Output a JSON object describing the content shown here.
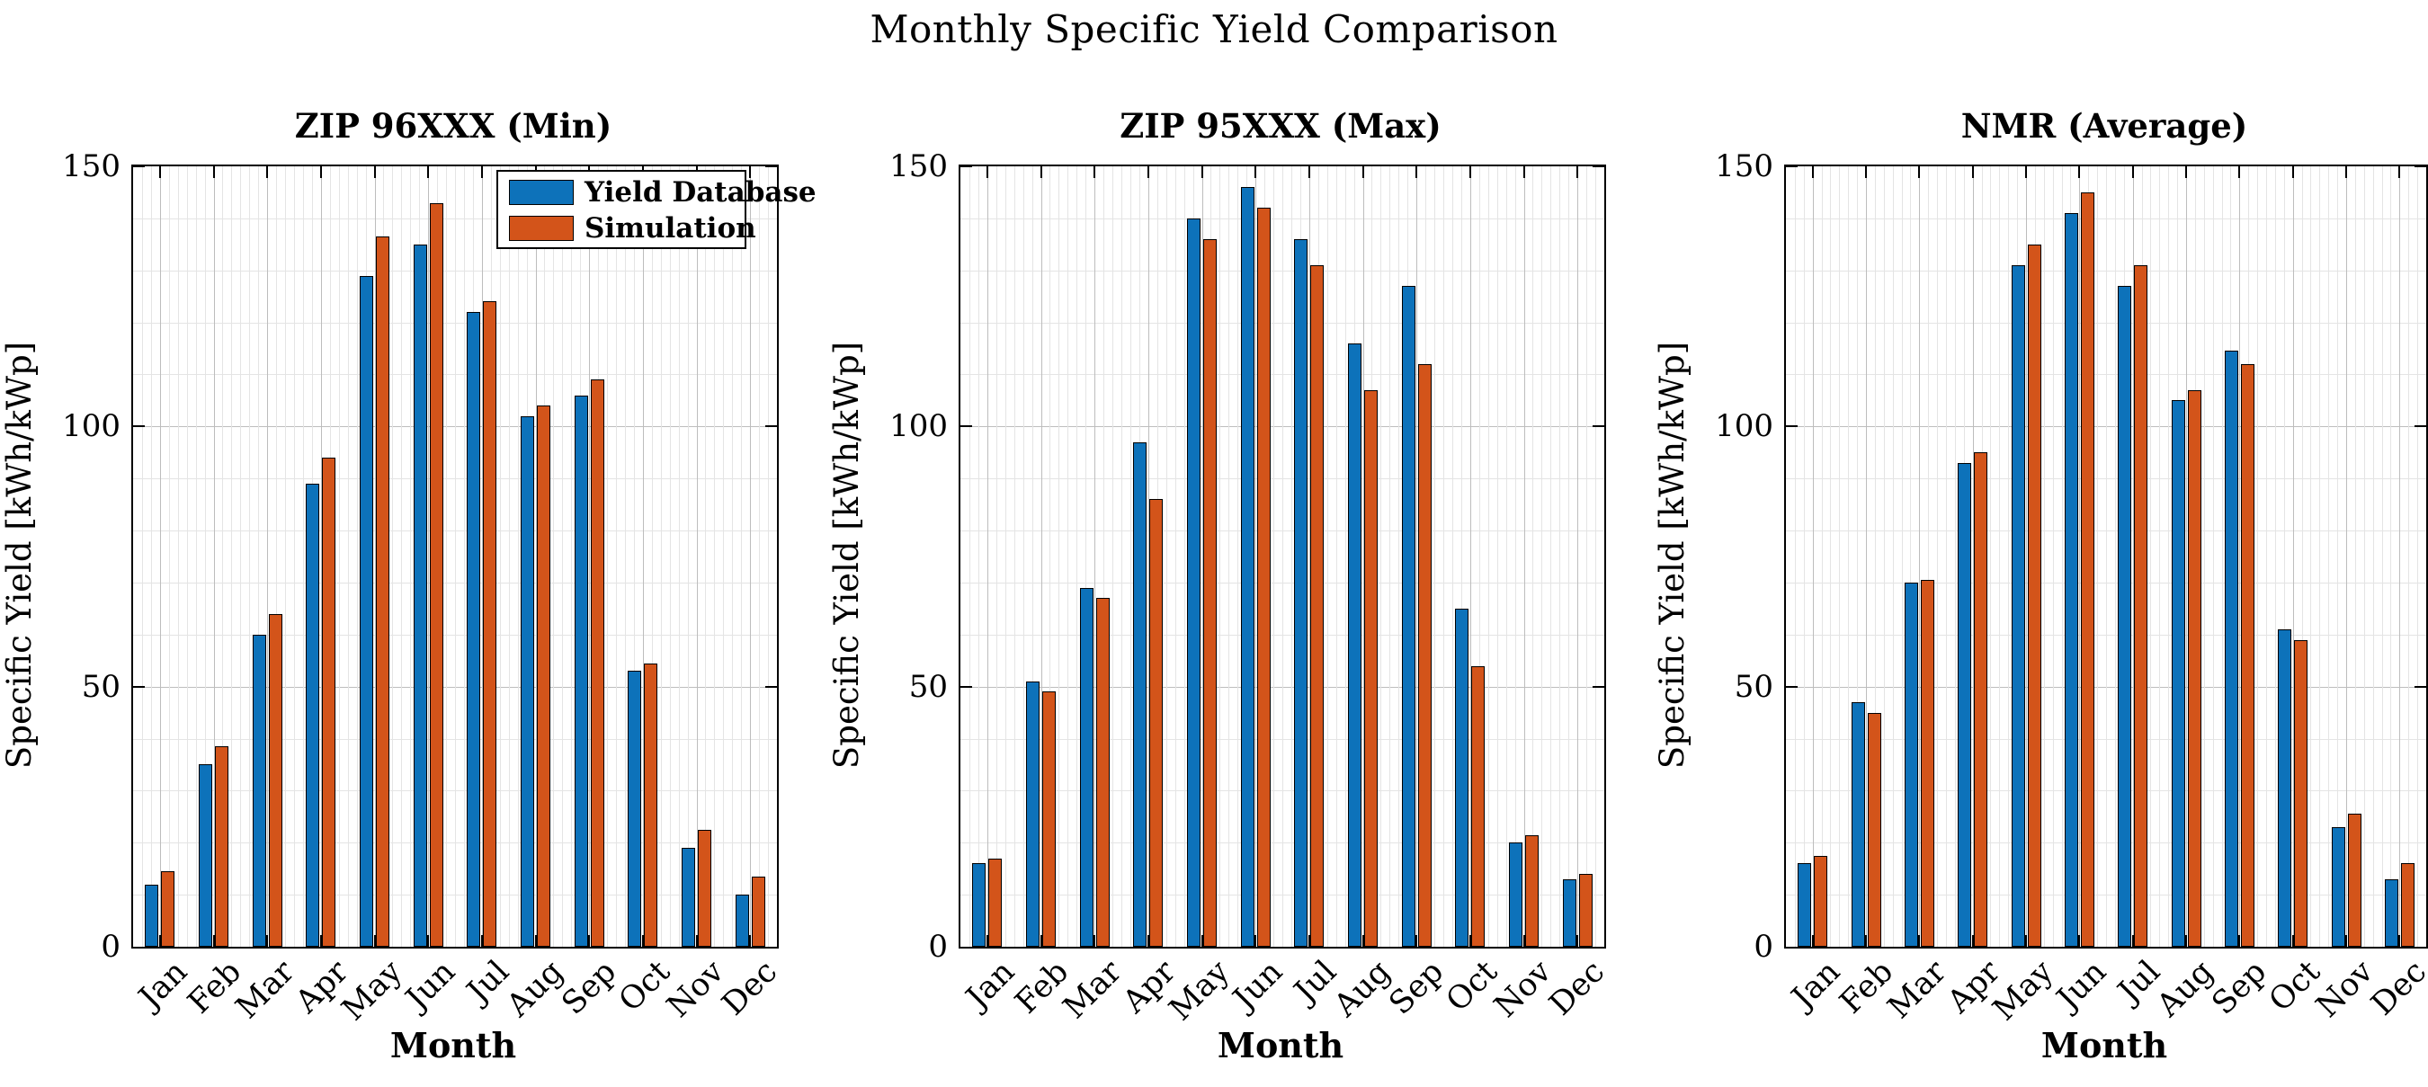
{
  "suptitle": "Monthly Specific Yield Comparison",
  "colors": {
    "series1": "#0d72ba",
    "series2": "#d3541a",
    "grid_major": "#bdbdbd",
    "grid_minor": "#e4e4e4",
    "axis": "#000000"
  },
  "legend": {
    "items": [
      {
        "label": "Yield Database",
        "color": "#0d72ba"
      },
      {
        "label": "Simulation",
        "color": "#d3541a"
      }
    ]
  },
  "chart_data": [
    {
      "type": "bar",
      "title": "ZIP 96XXX (Min)",
      "xlabel": "Month",
      "ylabel": "Specific Yield [kWh/kWp]",
      "ylim": [
        0,
        150
      ],
      "yticks": [
        0,
        50,
        100,
        150
      ],
      "grid": "major and minor, x and y",
      "legend_position": "top-right inside axes",
      "categories": [
        "Jan",
        "Feb",
        "Mar",
        "Apr",
        "May",
        "Jun",
        "Jul",
        "Aug",
        "Sep",
        "Oct",
        "Nov",
        "Dec"
      ],
      "series": [
        {
          "name": "Yield Database",
          "color": "#0d72ba",
          "values": [
            12,
            35,
            60,
            89,
            129,
            135,
            122,
            102,
            106,
            53,
            19,
            10
          ]
        },
        {
          "name": "Simulation",
          "color": "#d3541a",
          "values": [
            14.5,
            38.5,
            64,
            94,
            136.5,
            143,
            124,
            104,
            109,
            54.5,
            22.5,
            13.5
          ]
        }
      ]
    },
    {
      "type": "bar",
      "title": "ZIP 95XXX (Max)",
      "xlabel": "Month",
      "ylabel": "Specific Yield [kWh/kWp]",
      "ylim": [
        0,
        150
      ],
      "yticks": [
        0,
        50,
        100,
        150
      ],
      "grid": "major and minor, x and y",
      "legend_position": "none",
      "categories": [
        "Jan",
        "Feb",
        "Mar",
        "Apr",
        "May",
        "Jun",
        "Jul",
        "Aug",
        "Sep",
        "Oct",
        "Nov",
        "Dec"
      ],
      "series": [
        {
          "name": "Yield Database",
          "color": "#0d72ba",
          "values": [
            16,
            51,
            69,
            97,
            140,
            146,
            136,
            116,
            127,
            65,
            20,
            13
          ]
        },
        {
          "name": "Simulation",
          "color": "#d3541a",
          "values": [
            17,
            49,
            67,
            86,
            136,
            142,
            131,
            107,
            112,
            54,
            21.5,
            14
          ]
        }
      ]
    },
    {
      "type": "bar",
      "title": "NMR (Average)",
      "xlabel": "Month",
      "ylabel": "Specific Yield [kWh/kWp]",
      "ylim": [
        0,
        150
      ],
      "yticks": [
        0,
        50,
        100,
        150
      ],
      "grid": "major and minor, x and y",
      "legend_position": "none",
      "categories": [
        "Jan",
        "Feb",
        "Mar",
        "Apr",
        "May",
        "Jun",
        "Jul",
        "Aug",
        "Sep",
        "Oct",
        "Nov",
        "Dec"
      ],
      "series": [
        {
          "name": "Yield Database",
          "color": "#0d72ba",
          "values": [
            16,
            47,
            70,
            93,
            131,
            141,
            127,
            105,
            114.5,
            61,
            23,
            13
          ]
        },
        {
          "name": "Simulation",
          "color": "#d3541a",
          "values": [
            17.5,
            45,
            70.5,
            95,
            135,
            145,
            131,
            107,
            112,
            59,
            25.5,
            16
          ]
        }
      ]
    }
  ]
}
